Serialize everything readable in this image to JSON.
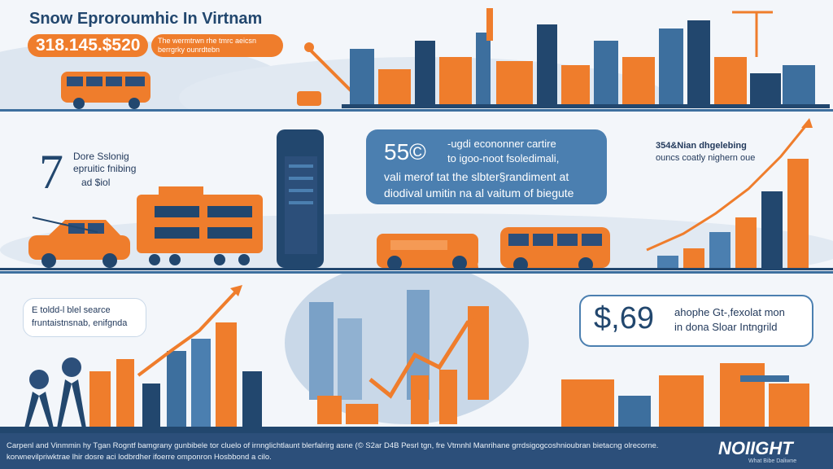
{
  "header": {
    "title": "Snow Eproroumhic In Virtnam",
    "amount": "318.145.$520",
    "amount_caption": "The wermtrwn rhe tmrc aeicsn berrgrky ounrdtebn"
  },
  "panel2": {
    "big_number": "7",
    "label_line1": "Dore Sslonig",
    "label_line2": "epruitic fnibing",
    "label_line3": "ad $iol",
    "bubble_number": "55©",
    "bubble_line1": "-ugdi econonner cartire",
    "bubble_line2": "to igoo-noot fsoledimali,",
    "bubble_line3": "vali merof tat the slbter§randiment at",
    "bubble_line4": "diodival umitin na al vaitum of biegute",
    "right_caption1": "354&Nian dhgelebing",
    "right_caption2": "ouncs coatly nighern oue"
  },
  "panel3": {
    "bubble_line1": "E toldd-l blel searce",
    "bubble_line2": "fruntaistnsnab, enifgnda",
    "price": "$,69",
    "price_line1": "ahophe Gt-,fexolat mon",
    "price_line2": "in dona Sloar Intngrild"
  },
  "footer": {
    "line1": "Carpenl and Vinmmin hy Tgan Rogntf bamgrany gunbibele tor cluelo of irnnglichtlaunt blerfalrirg asne (© S2ar D4B Pesrl tgn, fre Vtmnhl Manrihane grrdsigogcoshnioubran bietacng olrecorne.",
    "line2": "korwnevilpriwktrae lhir dosre aci lodbrdher ifoerre omponron Hosbbond a cilo.",
    "logo": "NOIIGHT",
    "logo_sub": "What Bibe Daliwne"
  },
  "colors": {
    "orange": "#ef7d2c",
    "navy": "#22476e",
    "blue": "#4b7fb0",
    "footer_bg": "#2c4f7a"
  }
}
